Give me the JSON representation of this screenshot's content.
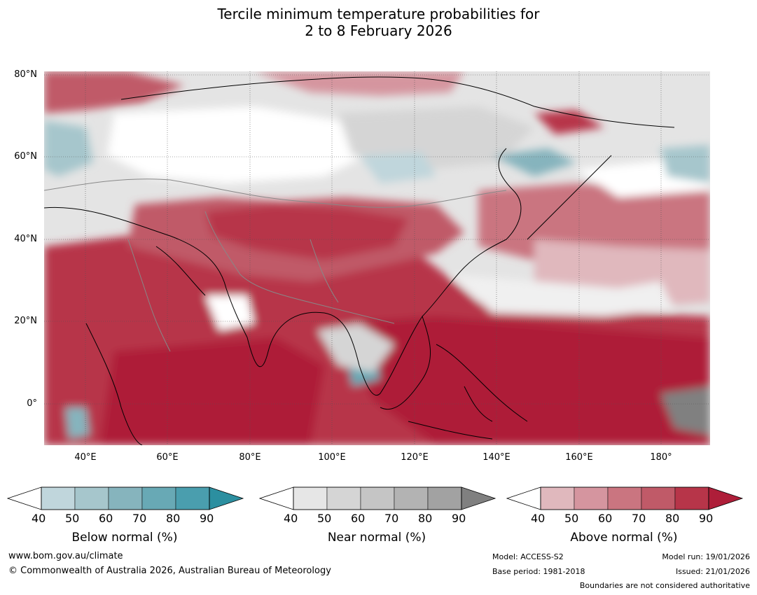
{
  "title": {
    "line1": "Tercile minimum temperature probabilities for",
    "line2": "2 to 8 February 2026"
  },
  "map": {
    "lat_labels": [
      "80°N",
      "60°N",
      "40°N",
      "20°N",
      "0°"
    ],
    "lon_labels": [
      "40°E",
      "60°E",
      "80°E",
      "100°E",
      "120°E",
      "140°E",
      "160°E",
      "180°"
    ]
  },
  "colorbars": [
    {
      "name": "Below normal (%)",
      "ticks": [
        "40",
        "50",
        "60",
        "70",
        "80",
        "90"
      ],
      "colors": [
        "#ffffff",
        "#c0d6dc",
        "#a6c6cc",
        "#86b4bd",
        "#68a9b5",
        "#4a9eae",
        "#2c8fa0"
      ]
    },
    {
      "name": "Near normal (%)",
      "ticks": [
        "40",
        "50",
        "60",
        "70",
        "80",
        "90"
      ],
      "colors": [
        "#ffffff",
        "#e6e6e6",
        "#d5d5d5",
        "#c5c5c5",
        "#b3b3b3",
        "#a2a2a2",
        "#808080"
      ]
    },
    {
      "name": "Above normal (%)",
      "ticks": [
        "40",
        "50",
        "60",
        "70",
        "80",
        "90"
      ],
      "colors": [
        "#ffffff",
        "#e0b8bd",
        "#d5959f",
        "#ca7580",
        "#c05a68",
        "#b73549",
        "#ae1e39"
      ]
    }
  ],
  "footer": {
    "website": "www.bom.gov.au/climate",
    "copyright": "© Commonwealth of Australia 2026, Australian Bureau of Meteorology",
    "model": "Model: ACCESS-S2",
    "base_period": "Base period: 1981-2018",
    "model_run": "Model run: 19/01/2026",
    "issued": "Issued: 21/01/2026",
    "disclaimer": "Boundaries are not considered authoritative"
  }
}
